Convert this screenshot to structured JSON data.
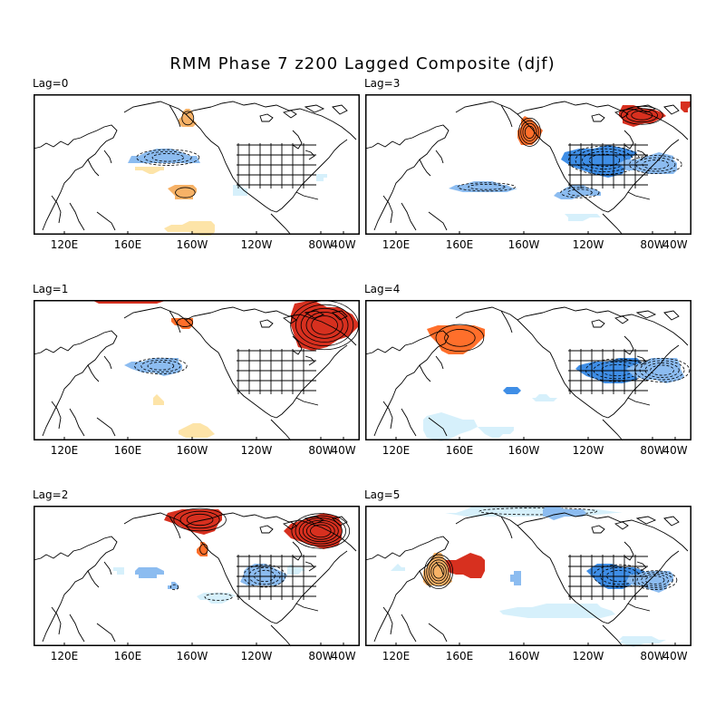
{
  "title": "RMM Phase 7 z200 Lagged Composite (djf)",
  "colors": {
    "warm_dark": "#d7301f",
    "warm_mid": "#ff6f2b",
    "warm_light": "#f7b267",
    "warm_pale": "#fde4a8",
    "cool_dark": "#3f8ee6",
    "cool_mid": "#8cbcf0",
    "cool_pale": "#d6f0fb",
    "land_outline": "#000000"
  },
  "panels": [
    {
      "id": "lag0",
      "label": "Lag=0",
      "xticks": [
        "120E",
        "160E",
        "160W",
        "120W",
        "80W",
        "40W"
      ],
      "features": [
        {
          "sign": "neg",
          "shade": "mid",
          "cx": 0.4,
          "cy": 0.45,
          "rx": 0.12,
          "ry": 0.07,
          "contours": 3
        },
        {
          "sign": "neg",
          "shade": "pale",
          "cx": 0.63,
          "cy": 0.69,
          "rx": 0.03,
          "ry": 0.05,
          "contours": 0
        },
        {
          "sign": "neg",
          "shade": "pale",
          "cx": 0.88,
          "cy": 0.59,
          "rx": 0.02,
          "ry": 0.03,
          "contours": 0
        },
        {
          "sign": "pos",
          "shade": "light",
          "cx": 0.46,
          "cy": 0.7,
          "rx": 0.05,
          "ry": 0.06,
          "contours": 1
        },
        {
          "sign": "pos",
          "shade": "pale",
          "cx": 0.36,
          "cy": 0.53,
          "rx": 0.05,
          "ry": 0.03,
          "contours": 0
        },
        {
          "sign": "pos",
          "shade": "pale",
          "cx": 0.49,
          "cy": 0.95,
          "rx": 0.09,
          "ry": 0.06,
          "contours": 0
        },
        {
          "sign": "pos",
          "shade": "light",
          "cx": 0.47,
          "cy": 0.17,
          "rx": 0.03,
          "ry": 0.08,
          "contours": 1
        }
      ]
    },
    {
      "id": "lag3",
      "label": "Lag=3",
      "xticks": [
        "120E",
        "160E",
        "160W",
        "120W",
        "80W",
        "40W"
      ],
      "features": [
        {
          "sign": "pos",
          "shade": "mid",
          "cx": 0.5,
          "cy": 0.27,
          "rx": 0.04,
          "ry": 0.12,
          "contours": 4
        },
        {
          "sign": "pos",
          "shade": "dark",
          "cx": 0.84,
          "cy": 0.15,
          "rx": 0.08,
          "ry": 0.08,
          "contours": 3
        },
        {
          "sign": "pos",
          "shade": "dark",
          "cx": 0.98,
          "cy": 0.08,
          "rx": 0.02,
          "ry": 0.05,
          "contours": 0
        },
        {
          "sign": "neg",
          "shade": "dark",
          "cx": 0.72,
          "cy": 0.47,
          "rx": 0.13,
          "ry": 0.12,
          "contours": 4
        },
        {
          "sign": "neg",
          "shade": "mid",
          "cx": 0.88,
          "cy": 0.5,
          "rx": 0.1,
          "ry": 0.08,
          "contours": 3
        },
        {
          "sign": "neg",
          "shade": "mid",
          "cx": 0.36,
          "cy": 0.66,
          "rx": 0.12,
          "ry": 0.04,
          "contours": 2
        },
        {
          "sign": "neg",
          "shade": "mid",
          "cx": 0.65,
          "cy": 0.7,
          "rx": 0.08,
          "ry": 0.05,
          "contours": 2
        },
        {
          "sign": "neg",
          "shade": "pale",
          "cx": 0.66,
          "cy": 0.87,
          "rx": 0.06,
          "ry": 0.03,
          "contours": 0
        }
      ]
    },
    {
      "id": "lag1",
      "label": "Lag=1",
      "xticks": [
        "120E",
        "160E",
        "160W",
        "120W",
        "80W",
        "40W"
      ],
      "features": [
        {
          "sign": "pos",
          "shade": "dark",
          "cx": 0.88,
          "cy": 0.18,
          "rx": 0.12,
          "ry": 0.2,
          "contours": 5
        },
        {
          "sign": "pos",
          "shade": "dark",
          "cx": 0.29,
          "cy": 0.01,
          "rx": 0.14,
          "ry": 0.03,
          "contours": 0
        },
        {
          "sign": "pos",
          "shade": "mid",
          "cx": 0.46,
          "cy": 0.16,
          "rx": 0.04,
          "ry": 0.05,
          "contours": 1
        },
        {
          "sign": "neg",
          "shade": "mid",
          "cx": 0.38,
          "cy": 0.47,
          "rx": 0.1,
          "ry": 0.07,
          "contours": 3
        },
        {
          "sign": "pos",
          "shade": "pale",
          "cx": 0.5,
          "cy": 0.93,
          "rx": 0.06,
          "ry": 0.06,
          "contours": 0
        },
        {
          "sign": "pos",
          "shade": "pale",
          "cx": 0.38,
          "cy": 0.72,
          "rx": 0.02,
          "ry": 0.04,
          "contours": 0
        }
      ]
    },
    {
      "id": "lag4",
      "label": "Lag=4",
      "xticks": [
        "120E",
        "160E",
        "160W",
        "120W",
        "80W",
        "40W"
      ],
      "features": [
        {
          "sign": "pos",
          "shade": "mid",
          "cx": 0.28,
          "cy": 0.27,
          "rx": 0.1,
          "ry": 0.13,
          "contours": 2
        },
        {
          "sign": "neg",
          "shade": "dark",
          "cx": 0.76,
          "cy": 0.5,
          "rx": 0.12,
          "ry": 0.1,
          "contours": 3
        },
        {
          "sign": "neg",
          "shade": "mid",
          "cx": 0.9,
          "cy": 0.5,
          "rx": 0.1,
          "ry": 0.1,
          "contours": 4
        },
        {
          "sign": "neg",
          "shade": "dark",
          "cx": 0.45,
          "cy": 0.64,
          "rx": 0.03,
          "ry": 0.03,
          "contours": 0
        },
        {
          "sign": "neg",
          "shade": "pale",
          "cx": 0.55,
          "cy": 0.7,
          "rx": 0.05,
          "ry": 0.02,
          "contours": 0
        },
        {
          "sign": "neg",
          "shade": "pale",
          "cx": 0.25,
          "cy": 0.9,
          "rx": 0.1,
          "ry": 0.1,
          "contours": 0
        },
        {
          "sign": "neg",
          "shade": "pale",
          "cx": 0.4,
          "cy": 0.93,
          "rx": 0.06,
          "ry": 0.05,
          "contours": 0
        }
      ]
    },
    {
      "id": "lag2",
      "label": "Lag=2",
      "xticks": [
        "120E",
        "160E",
        "160W",
        "120W",
        "80W",
        "40W"
      ],
      "features": [
        {
          "sign": "pos",
          "shade": "dark",
          "cx": 0.5,
          "cy": 0.1,
          "rx": 0.1,
          "ry": 0.1,
          "contours": 3
        },
        {
          "sign": "pos",
          "shade": "dark",
          "cx": 0.87,
          "cy": 0.18,
          "rx": 0.1,
          "ry": 0.14,
          "contours": 6
        },
        {
          "sign": "pos",
          "shade": "mid",
          "cx": 0.52,
          "cy": 0.31,
          "rx": 0.02,
          "ry": 0.06,
          "contours": 1
        },
        {
          "sign": "neg",
          "shade": "mid",
          "cx": 0.7,
          "cy": 0.5,
          "rx": 0.08,
          "ry": 0.1,
          "contours": 3
        },
        {
          "sign": "neg",
          "shade": "pale",
          "cx": 0.8,
          "cy": 0.46,
          "rx": 0.03,
          "ry": 0.04,
          "contours": 0
        },
        {
          "sign": "neg",
          "shade": "mid",
          "cx": 0.35,
          "cy": 0.48,
          "rx": 0.05,
          "ry": 0.05,
          "contours": 0
        },
        {
          "sign": "neg",
          "shade": "pale",
          "cx": 0.56,
          "cy": 0.65,
          "rx": 0.07,
          "ry": 0.04,
          "contours": 1
        },
        {
          "sign": "neg",
          "shade": "pale",
          "cx": 0.26,
          "cy": 0.46,
          "rx": 0.02,
          "ry": 0.03,
          "contours": 0
        },
        {
          "sign": "neg",
          "shade": "mid",
          "cx": 0.43,
          "cy": 0.58,
          "rx": 0.02,
          "ry": 0.03,
          "contours": 1
        }
      ]
    },
    {
      "id": "lag5",
      "label": "Lag=5",
      "xticks": [
        "120E",
        "160E",
        "160W",
        "120W",
        "80W",
        "40W"
      ],
      "features": [
        {
          "sign": "pos",
          "shade": "dark",
          "cx": 0.31,
          "cy": 0.43,
          "rx": 0.08,
          "ry": 0.1,
          "contours": 0
        },
        {
          "sign": "pos",
          "shade": "light",
          "cx": 0.22,
          "cy": 0.47,
          "rx": 0.05,
          "ry": 0.14,
          "contours": 5
        },
        {
          "sign": "neg",
          "shade": "pale",
          "cx": 0.5,
          "cy": 0.04,
          "rx": 0.3,
          "ry": 0.04,
          "contours": 1
        },
        {
          "sign": "neg",
          "shade": "mid",
          "cx": 0.6,
          "cy": 0.05,
          "rx": 0.08,
          "ry": 0.05,
          "contours": 0
        },
        {
          "sign": "neg",
          "shade": "dark",
          "cx": 0.77,
          "cy": 0.5,
          "rx": 0.1,
          "ry": 0.1,
          "contours": 3
        },
        {
          "sign": "neg",
          "shade": "mid",
          "cx": 0.88,
          "cy": 0.53,
          "rx": 0.08,
          "ry": 0.08,
          "contours": 4
        },
        {
          "sign": "neg",
          "shade": "mid",
          "cx": 0.46,
          "cy": 0.52,
          "rx": 0.02,
          "ry": 0.06,
          "contours": 0
        },
        {
          "sign": "neg",
          "shade": "pale",
          "cx": 0.6,
          "cy": 0.75,
          "rx": 0.2,
          "ry": 0.06,
          "contours": 0
        },
        {
          "sign": "neg",
          "shade": "pale",
          "cx": 0.1,
          "cy": 0.45,
          "rx": 0.02,
          "ry": 0.03,
          "contours": 0
        },
        {
          "sign": "neg",
          "shade": "pale",
          "cx": 0.84,
          "cy": 0.96,
          "rx": 0.08,
          "ry": 0.04,
          "contours": 0
        }
      ]
    }
  ]
}
